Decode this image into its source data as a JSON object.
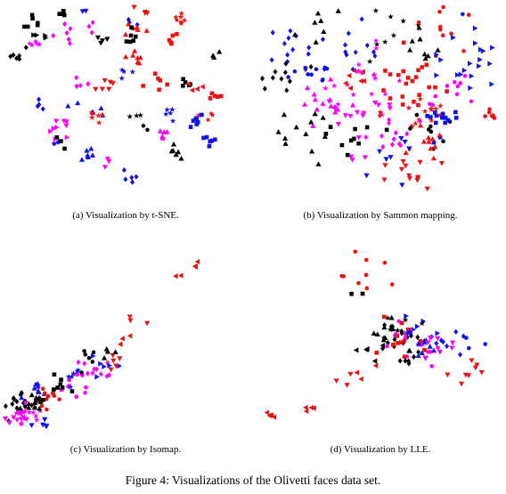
{
  "figure": {
    "caption": "Figure 4: Visualizations of the Olivetti faces data set."
  },
  "colors": {
    "black": "#000000",
    "magenta": "#ff00ff",
    "red": "#ee1111",
    "blue": "#1010ee"
  },
  "marker_shapes": [
    "circle",
    "square",
    "diamond",
    "triangle-up",
    "triangle-down",
    "triangle-left",
    "triangle-right",
    "star"
  ],
  "chart_data": [
    {
      "id": "a",
      "type": "scatter",
      "caption": "(a) Visualization by t-SNE.",
      "xlim": [
        0,
        100
      ],
      "ylim": [
        0,
        100
      ],
      "axes": "none",
      "grid": false,
      "legend": "none",
      "seed": 11,
      "clusters": [
        {
          "c": "black",
          "m": "square",
          "x": 12,
          "y": 92,
          "n": 6,
          "s": 3
        },
        {
          "c": "black",
          "m": "square",
          "x": 22,
          "y": 96,
          "n": 5,
          "s": 2
        },
        {
          "c": "blue",
          "m": "triangle-down",
          "x": 33,
          "y": 99,
          "n": 2,
          "s": 1
        },
        {
          "c": "magenta",
          "m": "diamond",
          "x": 30,
          "y": 88,
          "n": 9,
          "s": 4
        },
        {
          "c": "magenta",
          "m": "star",
          "x": 13,
          "y": 82,
          "n": 5,
          "s": 2
        },
        {
          "c": "black",
          "m": "diamond",
          "x": 4,
          "y": 75,
          "n": 6,
          "s": 2
        },
        {
          "c": "black",
          "m": "triangle-right",
          "x": 15,
          "y": 87,
          "n": 4,
          "s": 2
        },
        {
          "c": "blue",
          "m": "diamond",
          "x": 52,
          "y": 92,
          "n": 3,
          "s": 2
        },
        {
          "c": "red",
          "m": "triangle-up",
          "x": 54,
          "y": 88,
          "n": 6,
          "s": 2
        },
        {
          "c": "red",
          "m": "triangle-down",
          "x": 57,
          "y": 98,
          "n": 4,
          "s": 2
        },
        {
          "c": "black",
          "m": "square",
          "x": 52,
          "y": 84,
          "n": 6,
          "s": 2
        },
        {
          "c": "black",
          "m": "triangle-down",
          "x": 41,
          "y": 84,
          "n": 4,
          "s": 2
        },
        {
          "c": "red",
          "m": "triangle-up",
          "x": 55,
          "y": 74,
          "n": 7,
          "s": 2
        },
        {
          "c": "red",
          "m": "star",
          "x": 72,
          "y": 93,
          "n": 7,
          "s": 2
        },
        {
          "c": "red",
          "m": "square",
          "x": 70,
          "y": 82,
          "n": 5,
          "s": 2
        },
        {
          "c": "black",
          "m": "triangle-up",
          "x": 88,
          "y": 75,
          "n": 3,
          "s": 2
        },
        {
          "c": "magenta",
          "m": "diamond",
          "x": 30,
          "y": 62,
          "n": 5,
          "s": 2
        },
        {
          "c": "blue",
          "m": "star",
          "x": 50,
          "y": 66,
          "n": 4,
          "s": 2
        },
        {
          "c": "red",
          "m": "square",
          "x": 64,
          "y": 61,
          "n": 6,
          "s": 3
        },
        {
          "c": "black",
          "m": "square",
          "x": 76,
          "y": 60,
          "n": 5,
          "s": 2
        },
        {
          "c": "red",
          "m": "triangle-left",
          "x": 79,
          "y": 57,
          "n": 4,
          "s": 2
        },
        {
          "c": "red",
          "m": "triangle-down",
          "x": 42,
          "y": 59,
          "n": 6,
          "s": 2
        },
        {
          "c": "red",
          "m": "square",
          "x": 87,
          "y": 54,
          "n": 5,
          "s": 2
        },
        {
          "c": "blue",
          "m": "diamond",
          "x": 16,
          "y": 49,
          "n": 4,
          "s": 2
        },
        {
          "c": "blue",
          "m": "triangle-up",
          "x": 33,
          "y": 47,
          "n": 6,
          "s": 3
        },
        {
          "c": "red",
          "m": "star",
          "x": 37,
          "y": 43,
          "n": 6,
          "s": 2
        },
        {
          "c": "red",
          "m": "star",
          "x": 86,
          "y": 42,
          "n": 4,
          "s": 2
        },
        {
          "c": "black",
          "m": "star",
          "x": 52,
          "y": 43,
          "n": 3,
          "s": 2
        },
        {
          "c": "blue",
          "m": "star",
          "x": 68,
          "y": 45,
          "n": 5,
          "s": 2
        },
        {
          "c": "blue",
          "m": "square",
          "x": 79,
          "y": 41,
          "n": 7,
          "s": 2
        },
        {
          "c": "blue",
          "m": "square",
          "x": 86,
          "y": 31,
          "n": 6,
          "s": 2
        },
        {
          "c": "magenta",
          "m": "triangle-down",
          "x": 24,
          "y": 39,
          "n": 4,
          "s": 2
        },
        {
          "c": "black",
          "m": "circle",
          "x": 58,
          "y": 37,
          "n": 2,
          "s": 1
        },
        {
          "c": "magenta",
          "m": "triangle-up",
          "x": 65,
          "y": 34,
          "n": 6,
          "s": 2
        },
        {
          "c": "black",
          "m": "triangle-up",
          "x": 71,
          "y": 25,
          "n": 6,
          "s": 2
        },
        {
          "c": "magenta",
          "m": "triangle-right",
          "x": 22,
          "y": 35,
          "n": 6,
          "s": 3
        },
        {
          "c": "blue",
          "m": "triangle-up",
          "x": 35,
          "y": 24,
          "n": 6,
          "s": 2
        },
        {
          "c": "magenta",
          "m": "triangle-down",
          "x": 44,
          "y": 21,
          "n": 3,
          "s": 2
        },
        {
          "c": "blue",
          "m": "diamond",
          "x": 51,
          "y": 12,
          "n": 5,
          "s": 2
        },
        {
          "c": "blue",
          "m": "circle",
          "x": 21,
          "y": 29,
          "n": 2,
          "s": 1
        },
        {
          "c": "black",
          "m": "square",
          "x": 24,
          "y": 31,
          "n": 3,
          "s": 2
        }
      ]
    },
    {
      "id": "b",
      "type": "scatter",
      "caption": "(b) Visualization by Sammon mapping.",
      "xlim": [
        0,
        100
      ],
      "ylim": [
        0,
        100
      ],
      "axes": "none",
      "grid": false,
      "legend": "none",
      "seed": 23,
      "clusters": [
        {
          "c": "blue",
          "m": "diamond",
          "x": 18,
          "y": 78,
          "n": 14,
          "s": 6
        },
        {
          "c": "black",
          "m": "triangle-up",
          "x": 28,
          "y": 87,
          "n": 7,
          "s": 5
        },
        {
          "c": "black",
          "m": "star",
          "x": 52,
          "y": 87,
          "n": 8,
          "s": 6
        },
        {
          "c": "blue",
          "m": "diamond",
          "x": 43,
          "y": 80,
          "n": 10,
          "s": 6
        },
        {
          "c": "red",
          "m": "circle",
          "x": 74,
          "y": 87,
          "n": 10,
          "s": 7
        },
        {
          "c": "blue",
          "m": "triangle-right",
          "x": 82,
          "y": 76,
          "n": 12,
          "s": 7
        },
        {
          "c": "black",
          "m": "triangle-up",
          "x": 64,
          "y": 80,
          "n": 8,
          "s": 6
        },
        {
          "c": "red",
          "m": "square",
          "x": 60,
          "y": 60,
          "n": 22,
          "s": 7
        },
        {
          "c": "magenta",
          "m": "star",
          "x": 44,
          "y": 62,
          "n": 18,
          "s": 8
        },
        {
          "c": "magenta",
          "m": "triangle-up",
          "x": 24,
          "y": 50,
          "n": 14,
          "s": 6
        },
        {
          "c": "black",
          "m": "diamond",
          "x": 8,
          "y": 60,
          "n": 10,
          "s": 6
        },
        {
          "c": "blue",
          "m": "circle",
          "x": 22,
          "y": 66,
          "n": 10,
          "s": 5
        },
        {
          "c": "red",
          "m": "triangle-left",
          "x": 39,
          "y": 64,
          "n": 7,
          "s": 5
        },
        {
          "c": "magenta",
          "m": "triangle-down",
          "x": 43,
          "y": 42,
          "n": 16,
          "s": 8
        },
        {
          "c": "black",
          "m": "triangle-up",
          "x": 18,
          "y": 34,
          "n": 12,
          "s": 7
        },
        {
          "c": "red",
          "m": "star",
          "x": 65,
          "y": 44,
          "n": 16,
          "s": 6
        },
        {
          "c": "black",
          "m": "circle",
          "x": 70,
          "y": 35,
          "n": 8,
          "s": 6
        },
        {
          "c": "blue",
          "m": "square",
          "x": 74,
          "y": 42,
          "n": 14,
          "s": 6
        },
        {
          "c": "red",
          "m": "triangle-up",
          "x": 70,
          "y": 28,
          "n": 10,
          "s": 5
        },
        {
          "c": "red",
          "m": "triangle-down",
          "x": 62,
          "y": 16,
          "n": 9,
          "s": 6
        },
        {
          "c": "blue",
          "m": "triangle-down",
          "x": 52,
          "y": 24,
          "n": 8,
          "s": 6
        },
        {
          "c": "magenta",
          "m": "diamond",
          "x": 56,
          "y": 34,
          "n": 12,
          "s": 6
        },
        {
          "c": "black",
          "m": "square",
          "x": 38,
          "y": 30,
          "n": 10,
          "s": 6
        },
        {
          "c": "magenta",
          "m": "circle",
          "x": 78,
          "y": 56,
          "n": 10,
          "s": 6
        },
        {
          "c": "red",
          "m": "circle",
          "x": 95,
          "y": 45,
          "n": 6,
          "s": 2
        },
        {
          "c": "red",
          "m": "triangle-down",
          "x": 68,
          "y": 10,
          "n": 4,
          "s": 4
        },
        {
          "c": "blue",
          "m": "triangle-right",
          "x": 88,
          "y": 65,
          "n": 7,
          "s": 5
        },
        {
          "c": "blue",
          "m": "circle",
          "x": 84,
          "y": 97,
          "n": 1,
          "s": 1
        }
      ]
    },
    {
      "id": "c",
      "type": "scatter",
      "caption": "(c) Visualization by Isomap.",
      "xlim": [
        0,
        100
      ],
      "ylim": [
        0,
        100
      ],
      "axes": "none",
      "grid": false,
      "legend": "none",
      "seed": 37,
      "clusters": [
        {
          "c": "black",
          "m": "diamond",
          "x": 8,
          "y": 12,
          "n": 18,
          "s": 3
        },
        {
          "c": "magenta",
          "m": "star",
          "x": 10,
          "y": 8,
          "n": 14,
          "s": 3
        },
        {
          "c": "black",
          "m": "triangle-up",
          "x": 14,
          "y": 16,
          "n": 12,
          "s": 3
        },
        {
          "c": "blue",
          "m": "triangle-up",
          "x": 12,
          "y": 22,
          "n": 8,
          "s": 3
        },
        {
          "c": "red",
          "m": "circle",
          "x": 20,
          "y": 18,
          "n": 10,
          "s": 3
        },
        {
          "c": "magenta",
          "m": "circle",
          "x": 30,
          "y": 25,
          "n": 10,
          "s": 4
        },
        {
          "c": "blue",
          "m": "star",
          "x": 28,
          "y": 28,
          "n": 6,
          "s": 3
        },
        {
          "c": "black",
          "m": "square",
          "x": 22,
          "y": 24,
          "n": 8,
          "s": 3
        },
        {
          "c": "magenta",
          "m": "diamond",
          "x": 38,
          "y": 30,
          "n": 10,
          "s": 4
        },
        {
          "c": "blue",
          "m": "triangle-right",
          "x": 42,
          "y": 34,
          "n": 6,
          "s": 3
        },
        {
          "c": "black",
          "m": "circle",
          "x": 36,
          "y": 36,
          "n": 6,
          "s": 3
        },
        {
          "c": "red",
          "m": "triangle-down",
          "x": 48,
          "y": 36,
          "n": 5,
          "s": 2
        },
        {
          "c": "black",
          "m": "triangle-up",
          "x": 44,
          "y": 40,
          "n": 4,
          "s": 2
        },
        {
          "c": "red",
          "m": "triangle-left",
          "x": 52,
          "y": 48,
          "n": 3,
          "s": 2
        },
        {
          "c": "red",
          "m": "triangle-down",
          "x": 59,
          "y": 57,
          "n": 3,
          "s": 2
        },
        {
          "c": "red",
          "m": "triangle-left",
          "x": 76,
          "y": 81,
          "n": 2,
          "s": 1
        },
        {
          "c": "red",
          "m": "triangle-left",
          "x": 83,
          "y": 86,
          "n": 3,
          "s": 1
        },
        {
          "c": "magenta",
          "m": "triangle-down",
          "x": 6,
          "y": 6,
          "n": 8,
          "s": 2
        },
        {
          "c": "blue",
          "m": "triangle-down",
          "x": 16,
          "y": 4,
          "n": 5,
          "s": 2
        }
      ]
    },
    {
      "id": "d",
      "type": "scatter",
      "caption": "(d) Visualization by LLE.",
      "xlim": [
        0,
        100
      ],
      "ylim": [
        0,
        100
      ],
      "axes": "none",
      "grid": false,
      "legend": "none",
      "seed": 51,
      "clusters": [
        {
          "c": "red",
          "m": "circle",
          "x": 44,
          "y": 82,
          "n": 9,
          "s": 8
        },
        {
          "c": "black",
          "m": "square",
          "x": 40,
          "y": 70,
          "n": 2,
          "s": 2
        },
        {
          "c": "blue",
          "m": "triangle-right",
          "x": 66,
          "y": 58,
          "n": 6,
          "s": 5
        },
        {
          "c": "black",
          "m": "star",
          "x": 56,
          "y": 52,
          "n": 6,
          "s": 6
        },
        {
          "c": "black",
          "m": "diamond",
          "x": 58,
          "y": 44,
          "n": 22,
          "s": 6
        },
        {
          "c": "magenta",
          "m": "circle",
          "x": 62,
          "y": 46,
          "n": 14,
          "s": 6
        },
        {
          "c": "red",
          "m": "square",
          "x": 58,
          "y": 48,
          "n": 12,
          "s": 6
        },
        {
          "c": "blue",
          "m": "triangle-up",
          "x": 68,
          "y": 48,
          "n": 10,
          "s": 5
        },
        {
          "c": "black",
          "m": "triangle-up",
          "x": 52,
          "y": 48,
          "n": 8,
          "s": 5
        },
        {
          "c": "blue",
          "m": "diamond",
          "x": 78,
          "y": 46,
          "n": 8,
          "s": 4
        },
        {
          "c": "magenta",
          "m": "triangle-down",
          "x": 72,
          "y": 43,
          "n": 8,
          "s": 4
        },
        {
          "c": "blue",
          "m": "circle",
          "x": 90,
          "y": 44,
          "n": 3,
          "s": 3
        },
        {
          "c": "red",
          "m": "triangle-down",
          "x": 88,
          "y": 28,
          "n": 8,
          "s": 4
        },
        {
          "c": "red",
          "m": "triangle-left",
          "x": 44,
          "y": 30,
          "n": 3,
          "s": 3
        },
        {
          "c": "red",
          "m": "triangle-down",
          "x": 34,
          "y": 28,
          "n": 3,
          "s": 3
        },
        {
          "c": "red",
          "m": "triangle-left",
          "x": 5,
          "y": 8,
          "n": 4,
          "s": 2
        },
        {
          "c": "red",
          "m": "triangle-left",
          "x": 20,
          "y": 12,
          "n": 4,
          "s": 2
        },
        {
          "c": "black",
          "m": "triangle-left",
          "x": 46,
          "y": 42,
          "n": 5,
          "s": 3
        }
      ]
    }
  ]
}
